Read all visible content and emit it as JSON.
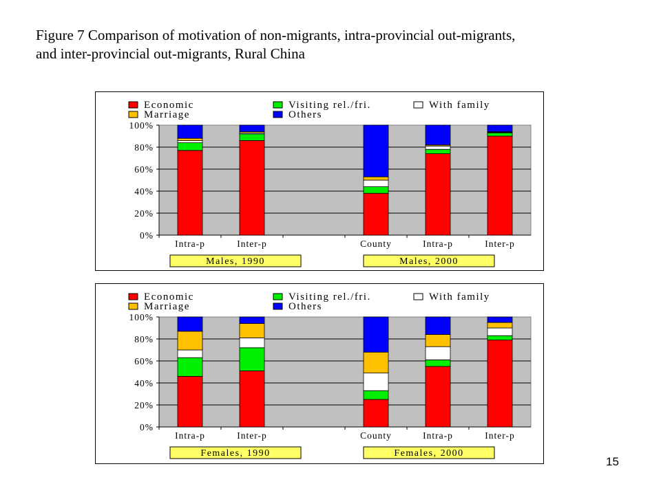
{
  "title": {
    "line1": "Figure 7   Comparison of motivation of non-migrants, intra-provincial out-migrants,",
    "line2": "and inter-provincial out-migrants, Rural China"
  },
  "page_number": "15",
  "colors": {
    "Economic": "#ff0000",
    "Visiting rel./fri.": "#00ee00",
    "With family": "#ffffff",
    "Marriage": "#ffc000",
    "Others": "#0000ff",
    "plot_background": "#c0c0c0",
    "group_label_background": "#ffff66"
  },
  "chart_data": [
    {
      "type": "bar",
      "stacked": true,
      "percent": true,
      "categories": [
        "Intra-p",
        "Inter-p",
        "",
        "County",
        "Intra-p",
        "Inter-p"
      ],
      "yticks": [
        "0%",
        "20%",
        "40%",
        "60%",
        "80%",
        "100%"
      ],
      "ylim": [
        0,
        100
      ],
      "legend": [
        "Economic",
        "Visiting rel./fri.",
        "With family",
        "Marriage",
        "Others"
      ],
      "group_labels": [
        "Males, 1990",
        "Males, 2000"
      ],
      "series": [
        {
          "name": "Economic",
          "values": [
            77,
            86,
            null,
            38,
            74,
            90
          ]
        },
        {
          "name": "Visiting rel./fri.",
          "values": [
            7,
            6,
            null,
            6,
            4,
            3
          ]
        },
        {
          "name": "With family",
          "values": [
            2,
            1,
            null,
            6,
            3,
            0.5
          ]
        },
        {
          "name": "Marriage",
          "values": [
            2,
            1,
            null,
            3,
            1,
            0.5
          ]
        },
        {
          "name": "Others",
          "values": [
            12,
            6,
            null,
            47,
            18,
            6
          ]
        }
      ]
    },
    {
      "type": "bar",
      "stacked": true,
      "percent": true,
      "categories": [
        "Intra-p",
        "Inter-p",
        "",
        "County",
        "Intra-p",
        "Inter-p"
      ],
      "yticks": [
        "0%",
        "20%",
        "40%",
        "60%",
        "80%",
        "100%"
      ],
      "ylim": [
        0,
        100
      ],
      "legend": [
        "Economic",
        "Visiting rel./fri.",
        "With family",
        "Marriage",
        "Others"
      ],
      "group_labels": [
        "Females, 1990",
        "Females, 2000"
      ],
      "series": [
        {
          "name": "Economic",
          "values": [
            46,
            51,
            null,
            25,
            55,
            79
          ]
        },
        {
          "name": "Visiting rel./fri.",
          "values": [
            17,
            21,
            null,
            8,
            6,
            4
          ]
        },
        {
          "name": "With family",
          "values": [
            7,
            9,
            null,
            16,
            12,
            7
          ]
        },
        {
          "name": "Marriage",
          "values": [
            17,
            13,
            null,
            19,
            11,
            5
          ]
        },
        {
          "name": "Others",
          "values": [
            13,
            6,
            null,
            32,
            16,
            5
          ]
        }
      ]
    }
  ]
}
